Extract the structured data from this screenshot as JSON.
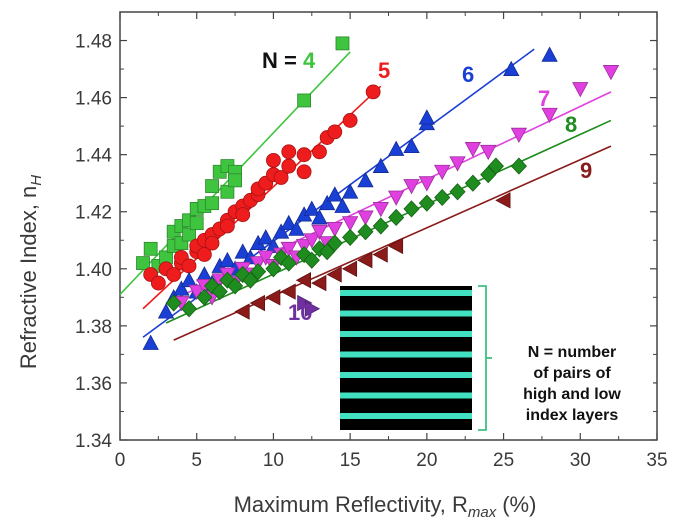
{
  "chart_data": {
    "type": "scatter",
    "title": "",
    "xlabel": "Maximum Reflectivity, R",
    "xlabel_sub": "max",
    "xlabel_unit": "(%)",
    "ylabel": "Refractive Index, n",
    "ylabel_sub": "H",
    "xlim": [
      0,
      35
    ],
    "ylim": [
      1.34,
      1.49
    ],
    "xticks": [
      "0",
      "5",
      "10",
      "15",
      "20",
      "25",
      "30",
      "35"
    ],
    "yticks": [
      "1.34",
      "1.36",
      "1.38",
      "1.40",
      "1.42",
      "1.44",
      "1.46",
      "1.48"
    ],
    "series": [
      {
        "label": "N = 4",
        "color": "#3ec43e",
        "marker": "square",
        "fit": [
          [
            0,
            1.391
          ],
          [
            15,
            1.476
          ]
        ],
        "points": [
          [
            1.5,
            1.402
          ],
          [
            2,
            1.407
          ],
          [
            2.5,
            1.401
          ],
          [
            3,
            1.404
          ],
          [
            3.5,
            1.408
          ],
          [
            3.5,
            1.413
          ],
          [
            4,
            1.409
          ],
          [
            4,
            1.415
          ],
          [
            4.5,
            1.412
          ],
          [
            4.5,
            1.417
          ],
          [
            5,
            1.421
          ],
          [
            5,
            1.416
          ],
          [
            5.5,
            1.422
          ],
          [
            6,
            1.423
          ],
          [
            6,
            1.429
          ],
          [
            6.5,
            1.434
          ],
          [
            7,
            1.427
          ],
          [
            7,
            1.436
          ],
          [
            7.5,
            1.434
          ],
          [
            7.5,
            1.431
          ],
          [
            12,
            1.459
          ],
          [
            14.5,
            1.479
          ]
        ]
      },
      {
        "label": "5",
        "color": "#ee1c1c",
        "marker": "circle",
        "fit": [
          [
            1.5,
            1.386
          ],
          [
            17,
            1.464
          ]
        ],
        "points": [
          [
            2,
            1.398
          ],
          [
            2.5,
            1.395
          ],
          [
            3,
            1.4
          ],
          [
            3.5,
            1.398
          ],
          [
            4,
            1.402
          ],
          [
            4,
            1.404
          ],
          [
            4.5,
            1.401
          ],
          [
            5,
            1.406
          ],
          [
            5,
            1.408
          ],
          [
            5.5,
            1.405
          ],
          [
            5.5,
            1.41
          ],
          [
            6,
            1.412
          ],
          [
            6,
            1.409
          ],
          [
            6.5,
            1.414
          ],
          [
            7,
            1.417
          ],
          [
            7,
            1.415
          ],
          [
            7.5,
            1.42
          ],
          [
            8,
            1.422
          ],
          [
            8,
            1.419
          ],
          [
            8.5,
            1.424
          ],
          [
            9,
            1.426
          ],
          [
            9,
            1.428
          ],
          [
            9.5,
            1.43
          ],
          [
            10,
            1.433
          ],
          [
            10,
            1.438
          ],
          [
            10.5,
            1.432
          ],
          [
            11,
            1.436
          ],
          [
            11,
            1.441
          ],
          [
            12,
            1.434
          ],
          [
            12,
            1.44
          ],
          [
            13,
            1.441
          ],
          [
            13.5,
            1.446
          ],
          [
            14,
            1.448
          ],
          [
            15,
            1.452
          ],
          [
            16.5,
            1.462
          ]
        ]
      },
      {
        "label": "6",
        "color": "#1a3fd4",
        "marker": "triangle-up",
        "fit": [
          [
            1.5,
            1.376
          ],
          [
            27,
            1.477
          ]
        ],
        "points": [
          [
            2,
            1.374
          ],
          [
            3,
            1.385
          ],
          [
            3.5,
            1.39
          ],
          [
            4,
            1.393
          ],
          [
            4.5,
            1.396
          ],
          [
            5,
            1.392
          ],
          [
            5.5,
            1.398
          ],
          [
            6,
            1.395
          ],
          [
            6.5,
            1.401
          ],
          [
            7,
            1.403
          ],
          [
            7.5,
            1.4
          ],
          [
            8,
            1.406
          ],
          [
            8.5,
            1.404
          ],
          [
            9,
            1.409
          ],
          [
            9.5,
            1.411
          ],
          [
            10,
            1.408
          ],
          [
            10.5,
            1.413
          ],
          [
            11,
            1.416
          ],
          [
            11.5,
            1.414
          ],
          [
            12,
            1.419
          ],
          [
            12.5,
            1.421
          ],
          [
            13,
            1.418
          ],
          [
            13.5,
            1.423
          ],
          [
            14,
            1.426
          ],
          [
            14.5,
            1.422
          ],
          [
            15,
            1.427
          ],
          [
            16,
            1.431
          ],
          [
            17,
            1.436
          ],
          [
            18,
            1.442
          ],
          [
            19,
            1.443
          ],
          [
            20,
            1.451
          ],
          [
            20,
            1.453
          ],
          [
            25.5,
            1.47
          ],
          [
            28,
            1.475
          ]
        ]
      },
      {
        "label": "7",
        "color": "#e040e0",
        "marker": "triangle-down",
        "fit": [
          [
            3,
            1.388
          ],
          [
            32,
            1.462
          ]
        ],
        "points": [
          [
            4,
            1.388
          ],
          [
            5,
            1.392
          ],
          [
            5.5,
            1.394
          ],
          [
            6,
            1.39
          ],
          [
            6.5,
            1.396
          ],
          [
            7,
            1.398
          ],
          [
            7.5,
            1.395
          ],
          [
            8,
            1.4
          ],
          [
            8.5,
            1.398
          ],
          [
            9,
            1.402
          ],
          [
            9.5,
            1.404
          ],
          [
            10,
            1.401
          ],
          [
            10.5,
            1.405
          ],
          [
            11,
            1.407
          ],
          [
            11.5,
            1.404
          ],
          [
            12,
            1.408
          ],
          [
            12.5,
            1.41
          ],
          [
            13,
            1.413
          ],
          [
            13.5,
            1.409
          ],
          [
            14,
            1.414
          ],
          [
            15,
            1.416
          ],
          [
            16,
            1.418
          ],
          [
            17,
            1.421
          ],
          [
            18,
            1.425
          ],
          [
            19,
            1.429
          ],
          [
            20,
            1.43
          ],
          [
            21,
            1.434
          ],
          [
            22,
            1.437
          ],
          [
            23,
            1.442
          ],
          [
            24,
            1.441
          ],
          [
            26,
            1.447
          ],
          [
            28,
            1.454
          ],
          [
            30,
            1.463
          ],
          [
            32,
            1.469
          ]
        ]
      },
      {
        "label": "8",
        "color": "#1e8c1e",
        "marker": "diamond",
        "fit": [
          [
            3,
            1.381
          ],
          [
            32,
            1.452
          ]
        ],
        "points": [
          [
            3.5,
            1.388
          ],
          [
            4.5,
            1.386
          ],
          [
            5.5,
            1.39
          ],
          [
            6,
            1.394
          ],
          [
            6.5,
            1.392
          ],
          [
            7,
            1.396
          ],
          [
            7.5,
            1.394
          ],
          [
            8,
            1.398
          ],
          [
            8.5,
            1.396
          ],
          [
            9,
            1.399
          ],
          [
            10,
            1.4
          ],
          [
            10.5,
            1.404
          ],
          [
            11,
            1.402
          ],
          [
            12,
            1.405
          ],
          [
            12.5,
            1.403
          ],
          [
            13,
            1.407
          ],
          [
            13.5,
            1.406
          ],
          [
            14,
            1.409
          ],
          [
            15,
            1.411
          ],
          [
            16,
            1.413
          ],
          [
            17,
            1.415
          ],
          [
            18,
            1.418
          ],
          [
            19,
            1.421
          ],
          [
            20,
            1.423
          ],
          [
            21,
            1.425
          ],
          [
            22,
            1.427
          ],
          [
            23,
            1.43
          ],
          [
            24,
            1.433
          ],
          [
            24.5,
            1.436
          ],
          [
            26,
            1.436
          ]
        ]
      },
      {
        "label": "9",
        "color": "#8b1a1a",
        "marker": "triangle-left",
        "fit": [
          [
            3.5,
            1.375
          ],
          [
            32,
            1.443
          ]
        ],
        "points": [
          [
            8,
            1.385
          ],
          [
            9,
            1.388
          ],
          [
            10,
            1.39
          ],
          [
            11,
            1.392
          ],
          [
            12,
            1.396
          ],
          [
            13,
            1.395
          ],
          [
            14,
            1.398
          ],
          [
            15,
            1.4
          ],
          [
            16,
            1.403
          ],
          [
            17,
            1.405
          ],
          [
            18,
            1.408
          ],
          [
            25,
            1.424
          ]
        ]
      },
      {
        "label": "10",
        "color": "#7030a0",
        "marker": "triangle-right",
        "fit": [],
        "points": [
          [
            12,
            1.388
          ],
          [
            12.5,
            1.386
          ]
        ]
      }
    ],
    "legend": {
      "lines": [
        "N = number",
        "of pairs of",
        "high and low",
        "index layers"
      ]
    }
  }
}
